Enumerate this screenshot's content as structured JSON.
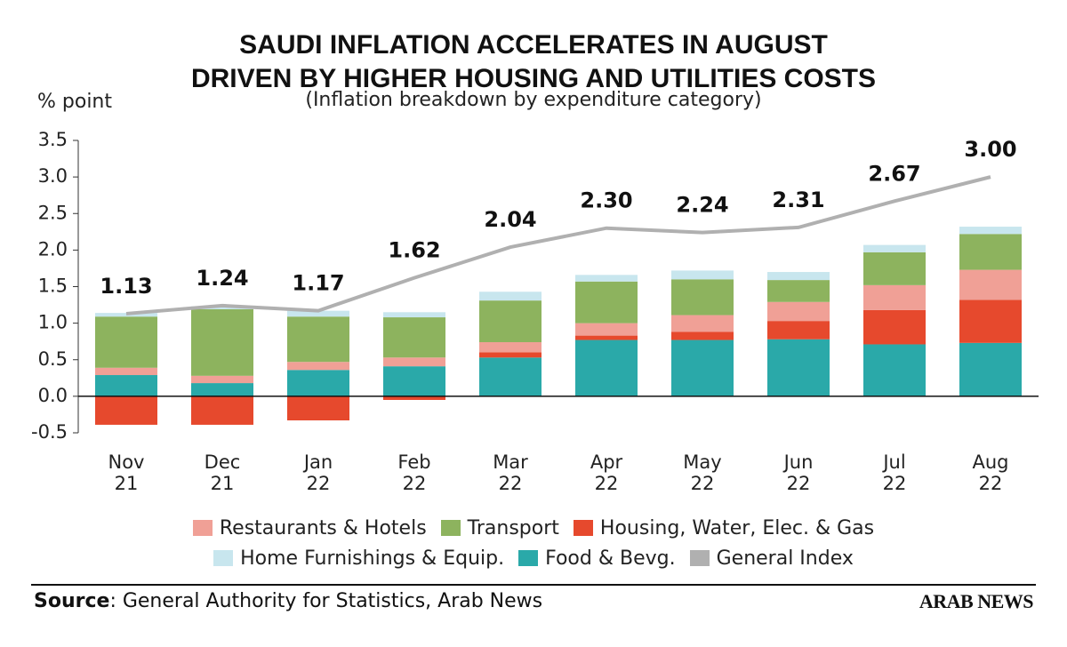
{
  "chart_data": {
    "type": "bar",
    "title": "SAUDI INFLATION ACCELERATES IN AUGUST\nDRIVEN BY HIGHER HOUSING AND UTILITIES COSTS",
    "subtitle": "(Inflation breakdown by expenditure category)",
    "y_label": "% point",
    "stacked": true,
    "categories": [
      "Nov\n21",
      "Dec\n21",
      "Jan\n22",
      "Feb\n22",
      "Mar\n22",
      "Apr\n22",
      "May\n22",
      "Jun\n22",
      "Jul\n22",
      "Aug\n22"
    ],
    "series": [
      {
        "name": "Restaurants & Hotels",
        "color": "#f0a096",
        "values": [
          0.1,
          0.1,
          0.11,
          0.12,
          0.14,
          0.17,
          0.23,
          0.26,
          0.34,
          0.41
        ]
      },
      {
        "name": "Transport",
        "color": "#8db35e",
        "values": [
          0.7,
          0.91,
          0.62,
          0.55,
          0.57,
          0.57,
          0.49,
          0.3,
          0.45,
          0.49
        ]
      },
      {
        "name": "Housing, Water, Elec. & Gas",
        "color": "#e6492d",
        "values": [
          -0.39,
          -0.39,
          -0.33,
          -0.05,
          0.07,
          0.06,
          0.11,
          0.25,
          0.47,
          0.59
        ]
      },
      {
        "name": "Home Furnishings & Equip.",
        "color": "#c8e6ee",
        "values": [
          0.05,
          0.04,
          0.08,
          0.07,
          0.12,
          0.09,
          0.12,
          0.11,
          0.1,
          0.1
        ]
      },
      {
        "name": "Food & Bevg.",
        "color": "#2aa9a9",
        "values": [
          0.29,
          0.18,
          0.36,
          0.41,
          0.53,
          0.77,
          0.77,
          0.78,
          0.71,
          0.73
        ]
      },
      {
        "name": "General Index",
        "color": "#b0b0b0",
        "type": "line",
        "values": [
          1.13,
          1.24,
          1.17,
          1.62,
          2.04,
          2.3,
          2.24,
          2.31,
          2.67,
          3.0
        ],
        "value_labels": [
          "1.13",
          "1.24",
          "1.17",
          "1.62",
          "2.04",
          "2.30",
          "2.24",
          "2.31",
          "2.67",
          "3.00"
        ]
      }
    ],
    "ylim": [
      -0.5,
      3.5
    ],
    "yticks": [
      -0.5,
      {
        "value": 0,
        "label": "0.0"
      },
      0.5,
      {
        "value": 1,
        "label": "1.0"
      },
      1.5,
      {
        "value": 2,
        "label": "2.0"
      },
      2.5,
      {
        "value": 3,
        "label": "3.0"
      },
      3.5
    ],
    "grid": false,
    "source_label": "Source",
    "source_text": ": General Authority for Statistics, Arab News",
    "logo": "ARAB NEWS"
  }
}
